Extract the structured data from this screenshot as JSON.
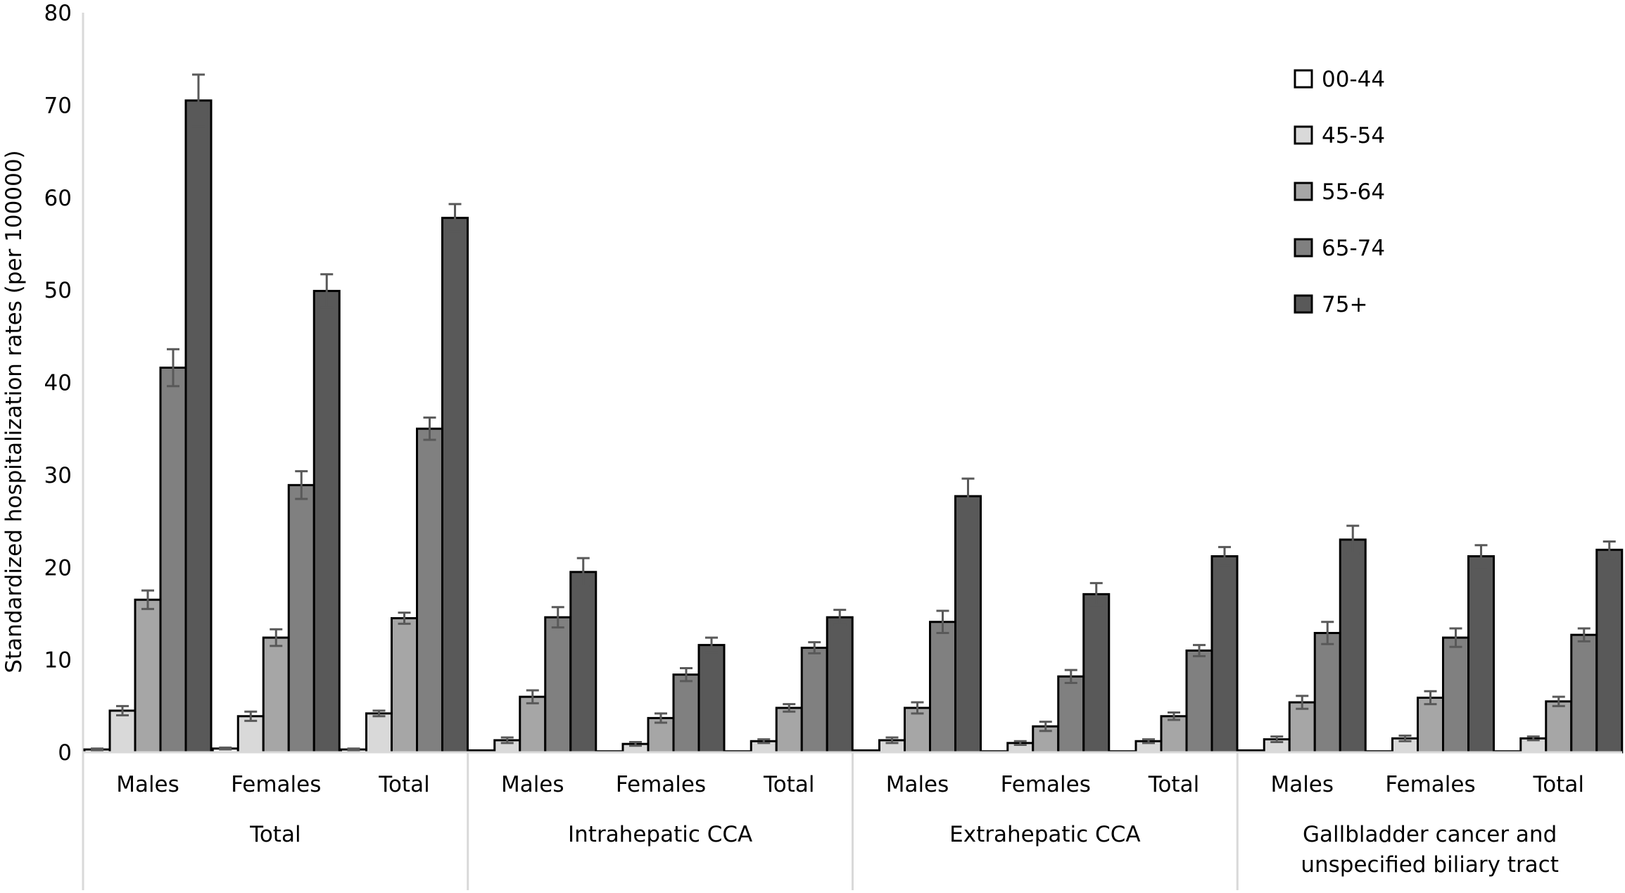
{
  "chart_data": {
    "type": "bar",
    "ylabel": "Standardized hospitalization rates (per 100000)",
    "ylim": [
      0,
      80
    ],
    "yticks": [
      0,
      10,
      20,
      30,
      40,
      50,
      60,
      70,
      80
    ],
    "grid": false,
    "legend_position": "top-right",
    "series_names": [
      "00-44",
      "45-54",
      "55-64",
      "65-74",
      "75+"
    ],
    "colors": [
      "#ffffff",
      "#d9d9d9",
      "#a6a6a6",
      "#808080",
      "#595959"
    ],
    "groups": [
      {
        "label": "Total",
        "clusters": [
          {
            "label": "Males",
            "values": [
              0.3,
              4.5,
              16.5,
              41.6,
              70.5
            ],
            "errors": [
              0.1,
              0.5,
              1.0,
              2.0,
              2.8
            ]
          },
          {
            "label": "Females",
            "values": [
              0.4,
              3.9,
              12.4,
              28.9,
              49.9
            ],
            "errors": [
              0.1,
              0.5,
              0.9,
              1.5,
              1.8
            ]
          },
          {
            "label": "Total",
            "values": [
              0.3,
              4.2,
              14.5,
              35.0,
              57.8
            ],
            "errors": [
              0.1,
              0.3,
              0.6,
              1.2,
              1.5
            ]
          }
        ]
      },
      {
        "label": "Intrahepatic CCA",
        "clusters": [
          {
            "label": "Males",
            "values": [
              0.2,
              1.3,
              6.0,
              14.6,
              19.5
            ],
            "errors": [
              0.05,
              0.3,
              0.7,
              1.1,
              1.5
            ]
          },
          {
            "label": "Females",
            "values": [
              0.1,
              0.9,
              3.7,
              8.4,
              11.6
            ],
            "errors": [
              0.05,
              0.2,
              0.5,
              0.7,
              0.8
            ]
          },
          {
            "label": "Total",
            "values": [
              0.1,
              1.2,
              4.8,
              11.3,
              14.6
            ],
            "errors": [
              0.05,
              0.2,
              0.4,
              0.6,
              0.8
            ]
          }
        ]
      },
      {
        "label": "Extrahepatic CCA",
        "clusters": [
          {
            "label": "Males",
            "values": [
              0.2,
              1.3,
              4.8,
              14.1,
              27.7
            ],
            "errors": [
              0.05,
              0.3,
              0.6,
              1.2,
              1.9
            ]
          },
          {
            "label": "Females",
            "values": [
              0.1,
              1.0,
              2.8,
              8.2,
              17.1
            ],
            "errors": [
              0.05,
              0.2,
              0.5,
              0.7,
              1.2
            ]
          },
          {
            "label": "Total",
            "values": [
              0.1,
              1.2,
              3.9,
              11.0,
              21.2
            ],
            "errors": [
              0.05,
              0.2,
              0.4,
              0.6,
              1.0
            ]
          }
        ]
      },
      {
        "label": "Gallbladder cancer and unspecified biliary tract",
        "clusters": [
          {
            "label": "Males",
            "values": [
              0.2,
              1.4,
              5.4,
              12.9,
              23.0
            ],
            "errors": [
              0.05,
              0.3,
              0.7,
              1.2,
              1.5
            ]
          },
          {
            "label": "Females",
            "values": [
              0.1,
              1.5,
              5.9,
              12.4,
              21.2
            ],
            "errors": [
              0.05,
              0.3,
              0.7,
              1.0,
              1.2
            ]
          },
          {
            "label": "Total",
            "values": [
              0.1,
              1.5,
              5.5,
              12.7,
              21.9
            ],
            "errors": [
              0.05,
              0.2,
              0.5,
              0.7,
              0.9
            ]
          }
        ]
      }
    ]
  }
}
